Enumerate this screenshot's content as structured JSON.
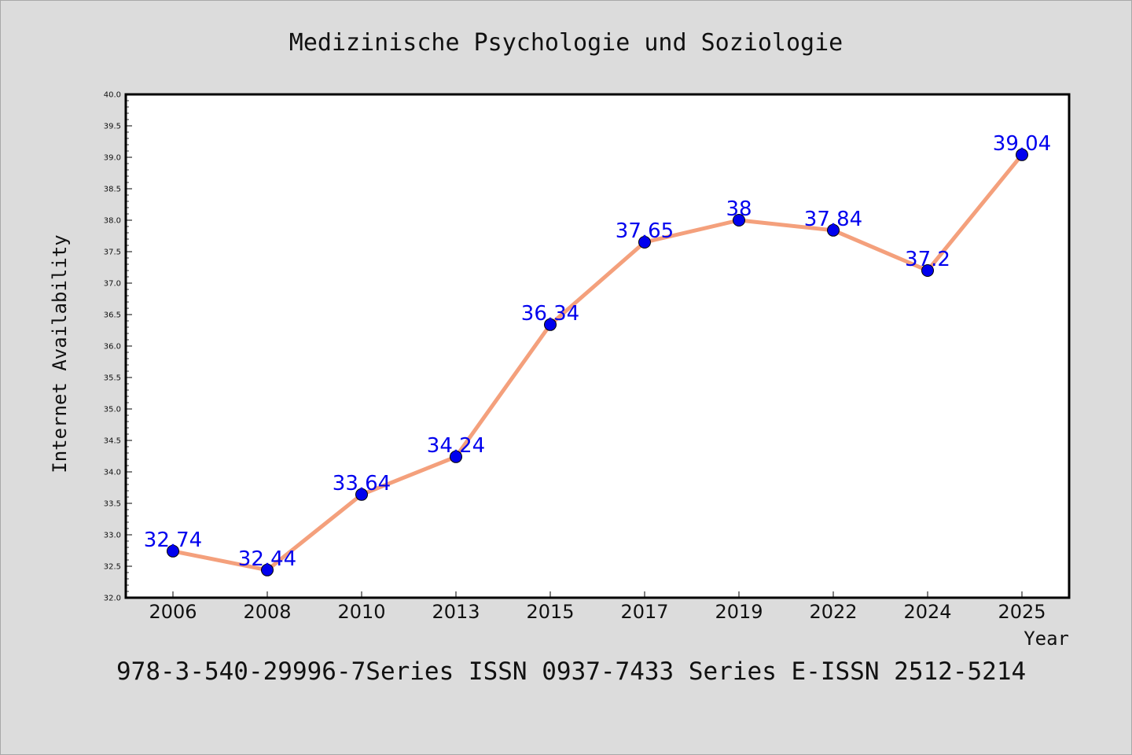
{
  "chart_data": {
    "type": "line",
    "title": "Medizinische Psychologie und Soziologie",
    "xlabel": "Year",
    "ylabel": "Internet Availability",
    "categories": [
      "2006",
      "2008",
      "2010",
      "2013",
      "2015",
      "2017",
      "2019",
      "2022",
      "2024",
      "2025"
    ],
    "series": [
      {
        "values": [
          32.74,
          32.44,
          33.64,
          34.24,
          36.34,
          37.65,
          38,
          37.84,
          37.2,
          39.04
        ],
        "labels": [
          "32.74",
          "32.44",
          "33.64",
          "34.24",
          "36.34",
          "37.65",
          "38",
          "37.84",
          "37.2",
          "39.04"
        ],
        "line_color": "#f4a07c",
        "marker_color": "#0000ee"
      }
    ],
    "ylim": [
      32.0,
      40.0
    ],
    "yticks": [
      "32.0",
      "32.5",
      "33.0",
      "33.5",
      "34.0",
      "34.5",
      "35.0",
      "35.5",
      "36.0",
      "36.5",
      "37.0",
      "37.5",
      "38.0",
      "38.5",
      "39.0",
      "39.5",
      "40.0"
    ],
    "grid": false,
    "legend": "none",
    "footer": "978-3-540-29996-7Series ISSN 0937-7433 Series E-ISSN 2512-5214"
  }
}
